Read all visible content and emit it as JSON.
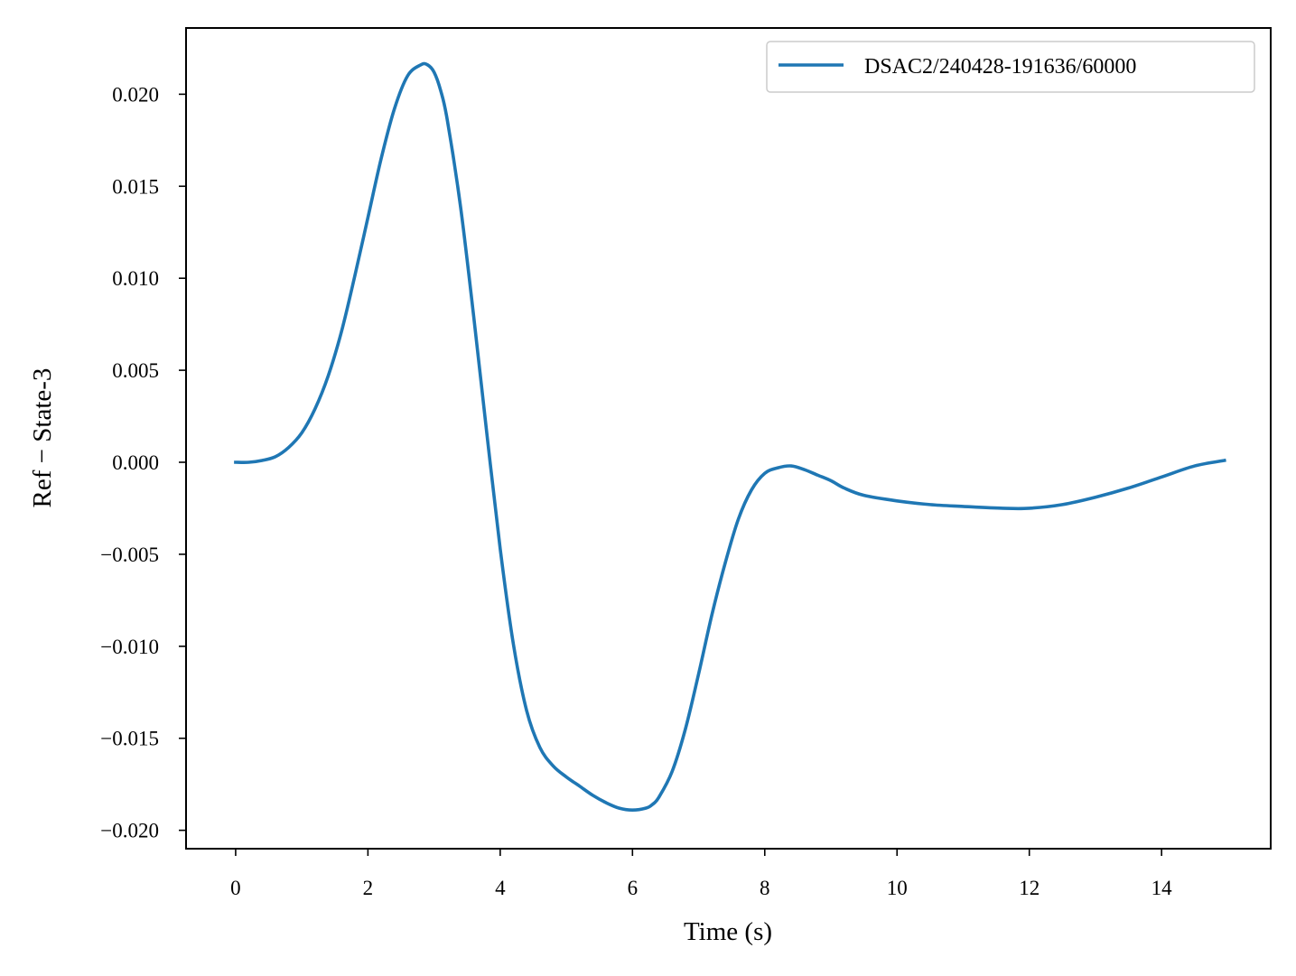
{
  "chart_data": {
    "type": "line",
    "title": "",
    "xlabel": "Time (s)",
    "ylabel": "Ref − State-3",
    "xlim": [
      -0.75,
      15.65
    ],
    "ylim": [
      -0.021,
      0.0236
    ],
    "xticks": [
      0,
      2,
      4,
      6,
      8,
      10,
      12,
      14
    ],
    "xtick_labels": [
      "0",
      "2",
      "4",
      "6",
      "8",
      "10",
      "12",
      "14"
    ],
    "yticks": [
      0.02,
      0.015,
      0.01,
      0.005,
      0.0,
      -0.005,
      -0.01,
      -0.015,
      -0.02
    ],
    "ytick_labels": [
      "0.020",
      "0.015",
      "0.010",
      "0.005",
      "0.000",
      "−0.005",
      "−0.010",
      "−0.015",
      "−0.020"
    ],
    "grid": false,
    "legend_position": "top-right",
    "series": [
      {
        "name": "DSAC2/240428-191636/60000",
        "color": "#1f77b4",
        "x": [
          0,
          0.2,
          0.4,
          0.6,
          0.8,
          1.0,
          1.2,
          1.4,
          1.6,
          1.8,
          2.0,
          2.2,
          2.4,
          2.6,
          2.8,
          2.9,
          3.0,
          3.1,
          3.2,
          3.4,
          3.6,
          3.8,
          4.0,
          4.2,
          4.4,
          4.6,
          4.8,
          5.0,
          5.2,
          5.4,
          5.6,
          5.8,
          6.0,
          6.2,
          6.3,
          6.4,
          6.6,
          6.8,
          7.0,
          7.2,
          7.4,
          7.6,
          7.8,
          8.0,
          8.2,
          8.4,
          8.6,
          8.8,
          9.0,
          9.2,
          9.5,
          10.0,
          10.5,
          11.0,
          11.6,
          12.0,
          12.5,
          13.0,
          13.5,
          14.0,
          14.5,
          14.95
        ],
        "y": [
          0.0,
          0.0,
          0.0001,
          0.0003,
          0.0008,
          0.0016,
          0.0029,
          0.0047,
          0.0071,
          0.0101,
          0.0133,
          0.0165,
          0.0192,
          0.021,
          0.0216,
          0.0216,
          0.0212,
          0.0202,
          0.0186,
          0.0139,
          0.0079,
          0.0015,
          -0.0047,
          -0.0099,
          -0.0135,
          -0.0155,
          -0.0165,
          -0.0171,
          -0.0176,
          -0.0181,
          -0.0185,
          -0.0188,
          -0.0189,
          -0.0188,
          -0.0186,
          -0.0182,
          -0.0168,
          -0.0145,
          -0.0115,
          -0.0083,
          -0.0055,
          -0.0031,
          -0.0015,
          -0.0006,
          -0.0003,
          -0.0002,
          -0.0004,
          -0.0007,
          -0.001,
          -0.0014,
          -0.0018,
          -0.0021,
          -0.0023,
          -0.0024,
          -0.0025,
          -0.0025,
          -0.0023,
          -0.0019,
          -0.0014,
          -0.0008,
          -0.0002,
          0.0001
        ]
      }
    ]
  }
}
